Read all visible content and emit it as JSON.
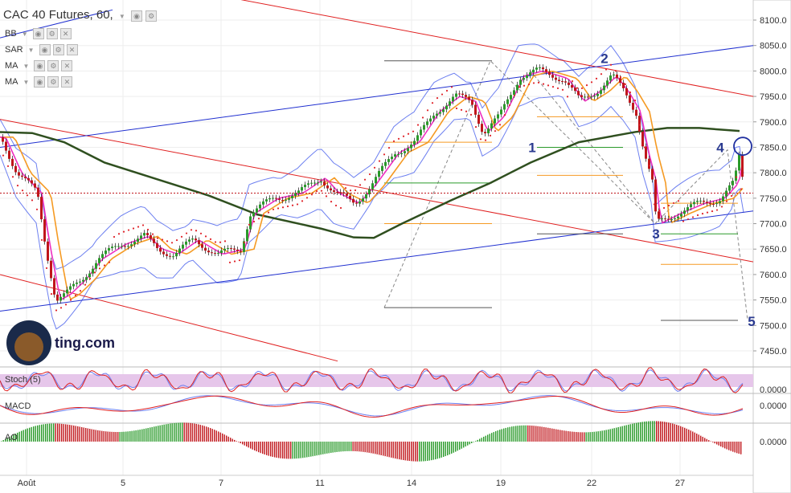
{
  "header": {
    "title": "CAC 40 Futures, 60,"
  },
  "indicators": [
    {
      "label": "BB"
    },
    {
      "label": "SAR"
    },
    {
      "label": "MA"
    },
    {
      "label": "MA"
    }
  ],
  "sub_panels": {
    "stoch": {
      "label": "Stoch (5)",
      "value": "0.0000"
    },
    "macd": {
      "label": "MACD",
      "value": "0.0000"
    },
    "ao": {
      "label": "AO",
      "value": "0.0000"
    }
  },
  "logo_text": "ting.com",
  "colors": {
    "up": "#2a9a2a",
    "down": "#c0161b",
    "ma_short": "#f59a23",
    "ma_long": "#2f4f1f",
    "bb": "#6c7ff0",
    "sar": "#e0242a",
    "pink": "#ee30c0",
    "trend_red": "#e02020",
    "trend_blue": "#2030d0"
  },
  "chart_data": {
    "type": "line",
    "title": "CAC 40 Futures, 60,",
    "x_ticks": [
      "Août",
      "5",
      "7",
      "11",
      "14",
      "19",
      "22",
      "27"
    ],
    "y_ticks": [
      8100,
      8050,
      8000,
      7950,
      7900,
      7850,
      7800,
      7750,
      7700,
      7650,
      7600,
      7550,
      7500,
      7450
    ],
    "ylim": [
      7420,
      8120
    ],
    "price_path": [
      [
        0,
        7870
      ],
      [
        20,
        7800
      ],
      [
        45,
        7760
      ],
      [
        55,
        7660
      ],
      [
        68,
        7550
      ],
      [
        80,
        7560
      ],
      [
        100,
        7590
      ],
      [
        120,
        7630
      ],
      [
        150,
        7660
      ],
      [
        178,
        7675
      ],
      [
        195,
        7650
      ],
      [
        215,
        7640
      ],
      [
        240,
        7668
      ],
      [
        270,
        7640
      ],
      [
        298,
        7650
      ],
      [
        310,
        7720
      ],
      [
        340,
        7750
      ],
      [
        370,
        7760
      ],
      [
        398,
        7790
      ],
      [
        415,
        7760
      ],
      [
        440,
        7740
      ],
      [
        460,
        7775
      ],
      [
        490,
        7840
      ],
      [
        515,
        7860
      ],
      [
        540,
        7920
      ],
      [
        565,
        7950
      ],
      [
        585,
        7940
      ],
      [
        600,
        7880
      ],
      [
        620,
        7910
      ],
      [
        645,
        7990
      ],
      [
        668,
        8000
      ],
      [
        690,
        7990
      ],
      [
        700,
        7985
      ],
      [
        720,
        7940
      ],
      [
        740,
        7960
      ],
      [
        760,
        7990
      ],
      [
        775,
        7960
      ],
      [
        790,
        7920
      ],
      [
        800,
        7840
      ],
      [
        810,
        7780
      ],
      [
        815,
        7700
      ],
      [
        840,
        7720
      ],
      [
        870,
        7740
      ],
      [
        895,
        7750
      ],
      [
        912,
        7780
      ],
      [
        918,
        7830
      ],
      [
        925,
        7760
      ]
    ],
    "ma_long_path": [
      [
        0,
        7880
      ],
      [
        40,
        7878
      ],
      [
        80,
        7860
      ],
      [
        130,
        7820
      ],
      [
        200,
        7785
      ],
      [
        260,
        7755
      ],
      [
        320,
        7718
      ],
      [
        400,
        7690
      ],
      [
        440,
        7673
      ],
      [
        465,
        7672
      ],
      [
        500,
        7700
      ],
      [
        560,
        7745
      ],
      [
        610,
        7780
      ],
      [
        660,
        7820
      ],
      [
        720,
        7860
      ],
      [
        790,
        7880
      ],
      [
        830,
        7888
      ],
      [
        870,
        7888
      ],
      [
        920,
        7882
      ]
    ],
    "trend_lines": [
      {
        "color": "red",
        "from": [
          0,
          7905
        ],
        "to": [
          937,
          7625
        ]
      },
      {
        "color": "red",
        "from": [
          300,
          8140
        ],
        "to": [
          937,
          7950
        ]
      },
      {
        "color": "red",
        "from": [
          0,
          7600
        ],
        "to": [
          420,
          7430
        ]
      },
      {
        "color": "blue",
        "from": [
          0,
          7528
        ],
        "to": [
          937,
          7725
        ]
      },
      {
        "color": "blue",
        "from": [
          0,
          7850
        ],
        "to": [
          937,
          8050
        ]
      },
      {
        "color": "blue",
        "from": [
          0,
          8065
        ],
        "to": [
          140,
          8120
        ]
      }
    ],
    "wave_labels": [
      {
        "text": "1",
        "x": 662,
        "y": 7850
      },
      {
        "text": "2",
        "x": 752,
        "y": 8025
      },
      {
        "text": "3",
        "x": 816,
        "y": 7680
      },
      {
        "text": "4",
        "x": 896,
        "y": 7850
      },
      {
        "text": "5",
        "x": 935,
        "y": 7508
      }
    ],
    "current_price": 7760
  }
}
